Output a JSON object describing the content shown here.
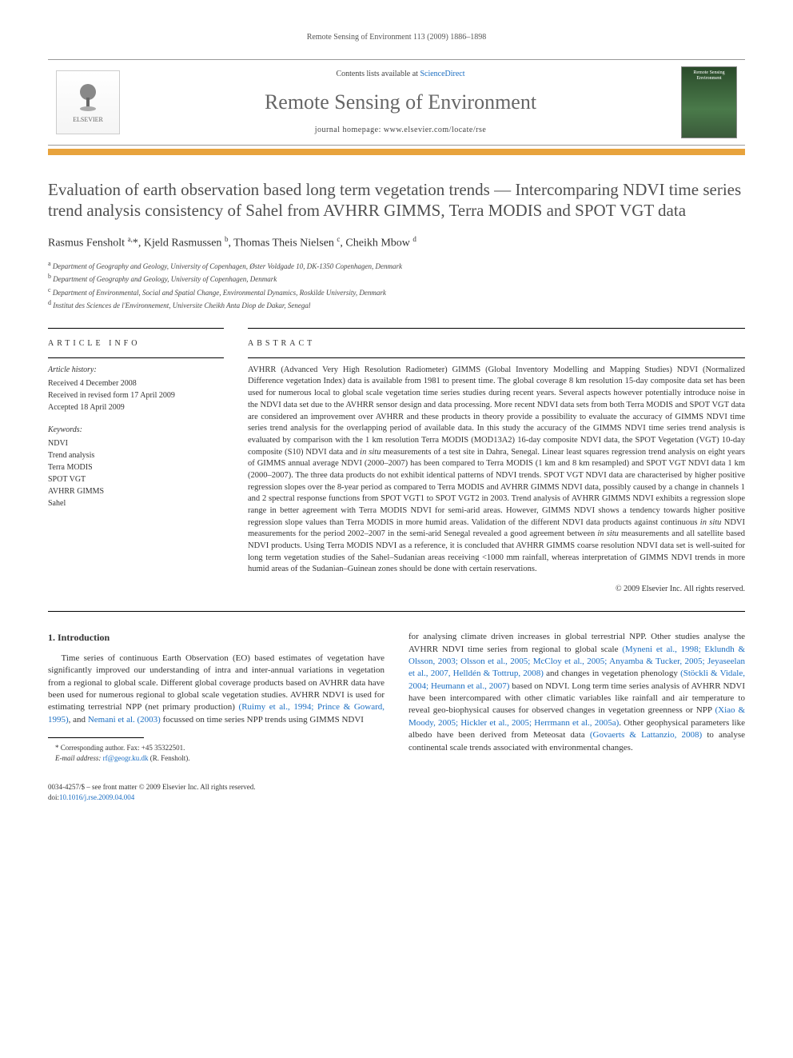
{
  "running_header": "Remote Sensing of Environment 113 (2009) 1886–1898",
  "banner": {
    "publisher": "ELSEVIER",
    "contents_prefix": "Contents lists available at ",
    "contents_link": "ScienceDirect",
    "journal": "Remote Sensing of Environment",
    "homepage_prefix": "journal homepage: ",
    "homepage_url": "www.elsevier.com/locate/rse",
    "cover_text": "Remote Sensing Environment"
  },
  "title": "Evaluation of earth observation based long term vegetation trends — Intercomparing NDVI time series trend analysis consistency of Sahel from AVHRR GIMMS, Terra MODIS and SPOT VGT data",
  "authors_html": "Rasmus Fensholt <sup>a,</sup>*, Kjeld Rasmussen <sup>b</sup>, Thomas Theis Nielsen <sup>c</sup>, Cheikh Mbow <sup>d</sup>",
  "affiliations": [
    {
      "sup": "a",
      "text": "Department of Geography and Geology, University of Copenhagen, Øster Voldgade 10, DK-1350 Copenhagen, Denmark"
    },
    {
      "sup": "b",
      "text": "Department of Geography and Geology, University of Copenhagen, Denmark"
    },
    {
      "sup": "c",
      "text": "Department of Environmental, Social and Spatial Change, Environmental Dynamics, Roskilde University, Denmark"
    },
    {
      "sup": "d",
      "text": "Institut des Sciences de l'Environnement, Universite Cheikh Anta Diop de Dakar, Senegal"
    }
  ],
  "article_info": {
    "heading": "ARTICLE INFO",
    "history_label": "Article history:",
    "history": [
      "Received 4 December 2008",
      "Received in revised form 17 April 2009",
      "Accepted 18 April 2009"
    ],
    "keywords_label": "Keywords:",
    "keywords": [
      "NDVI",
      "Trend analysis",
      "Terra MODIS",
      "SPOT VGT",
      "AVHRR GIMMS",
      "Sahel"
    ]
  },
  "abstract": {
    "heading": "ABSTRACT",
    "text": "AVHRR (Advanced Very High Resolution Radiometer) GIMMS (Global Inventory Modelling and Mapping Studies) NDVI (Normalized Difference vegetation Index) data is available from 1981 to present time. The global coverage 8 km resolution 15-day composite data set has been used for numerous local to global scale vegetation time series studies during recent years. Several aspects however potentially introduce noise in the NDVI data set due to the AVHRR sensor design and data processing. More recent NDVI data sets from both Terra MODIS and SPOT VGT data are considered an improvement over AVHRR and these products in theory provide a possibility to evaluate the accuracy of GIMMS NDVI time series trend analysis for the overlapping period of available data. In this study the accuracy of the GIMMS NDVI time series trend analysis is evaluated by comparison with the 1 km resolution Terra MODIS (MOD13A2) 16-day composite NDVI data, the SPOT Vegetation (VGT) 10-day composite (S10) NDVI data and in situ measurements of a test site in Dahra, Senegal. Linear least squares regression trend analysis on eight years of GIMMS annual average NDVI (2000–2007) has been compared to Terra MODIS (1 km and 8 km resampled) and SPOT VGT NDVI data 1 km (2000–2007). The three data products do not exhibit identical patterns of NDVI trends. SPOT VGT NDVI data are characterised by higher positive regression slopes over the 8-year period as compared to Terra MODIS and AVHRR GIMMS NDVI data, possibly caused by a change in channels 1 and 2 spectral response functions from SPOT VGT1 to SPOT VGT2 in 2003. Trend analysis of AVHRR GIMMS NDVI exhibits a regression slope range in better agreement with Terra MODIS NDVI for semi-arid areas. However, GIMMS NDVI shows a tendency towards higher positive regression slope values than Terra MODIS in more humid areas. Validation of the different NDVI data products against continuous in situ NDVI measurements for the period 2002–2007 in the semi-arid Senegal revealed a good agreement between in situ measurements and all satellite based NDVI products. Using Terra MODIS NDVI as a reference, it is concluded that AVHRR GIMMS coarse resolution NDVI data set is well-suited for long term vegetation studies of the Sahel–Sudanian areas receiving <1000 mm rainfall, whereas interpretation of GIMMS NDVI trends in more humid areas of the Sudanian–Guinean zones should be done with certain reservations.",
    "copyright": "© 2009 Elsevier Inc. All rights reserved."
  },
  "intro": {
    "heading": "1. Introduction",
    "left_para": "Time series of continuous Earth Observation (EO) based estimates of vegetation have significantly improved our understanding of intra and inter-annual variations in vegetation from a regional to global scale. Different global coverage products based on AVHRR data have been used for numerous regional to global scale vegetation studies. AVHRR NDVI is used for estimating terrestrial NPP (net primary production) ",
    "left_ref1": "(Ruimy et al., 1994; Prince & Goward, 1995)",
    "left_mid": ", and ",
    "left_ref2": "Nemani et al. (2003)",
    "left_end": " focussed on time series NPP trends using GIMMS NDVI",
    "right_para": "for analysing climate driven increases in global terrestrial NPP. Other studies analyse the AVHRR NDVI time series from regional to global scale ",
    "right_ref1": "(Myneni et al., 1998; Eklundh & Olsson, 2003; Olsson et al., 2005; McCloy et al., 2005; Anyamba & Tucker, 2005; Jeyaseelan et al., 2007, Helldén & Tottrup, 2008)",
    "right_mid1": " and changes in vegetation phenology ",
    "right_ref2": "(Stöckli & Vidale, 2004; Heumann et al., 2007)",
    "right_mid2": " based on NDVI. Long term time series analysis of AVHRR NDVI have been intercompared with other climatic variables like rainfall and air temperature to reveal geo-biophysical causes for observed changes in vegetation greenness or NPP ",
    "right_ref3": "(Xiao & Moody, 2005; Hickler et al., 2005; Herrmann et al., 2005a)",
    "right_mid3": ". Other geophysical parameters like albedo have been derived from Meteosat data ",
    "right_ref4": "(Govaerts & Lattanzio, 2008)",
    "right_end": " to analyse continental scale trends associated with environmental changes."
  },
  "footnote": {
    "corr": "* Corresponding author. Fax: +45 35322501.",
    "email_label": "E-mail address: ",
    "email": "rf@geogr.ku.dk",
    "email_who": " (R. Fensholt)."
  },
  "footer": {
    "line1": "0034-4257/$ – see front matter © 2009 Elsevier Inc. All rights reserved.",
    "doi_prefix": "doi:",
    "doi": "10.1016/j.rse.2009.04.004"
  },
  "colors": {
    "orange": "#e8a33d",
    "link": "#1b6ec2",
    "text": "#333333",
    "title": "#505050"
  }
}
